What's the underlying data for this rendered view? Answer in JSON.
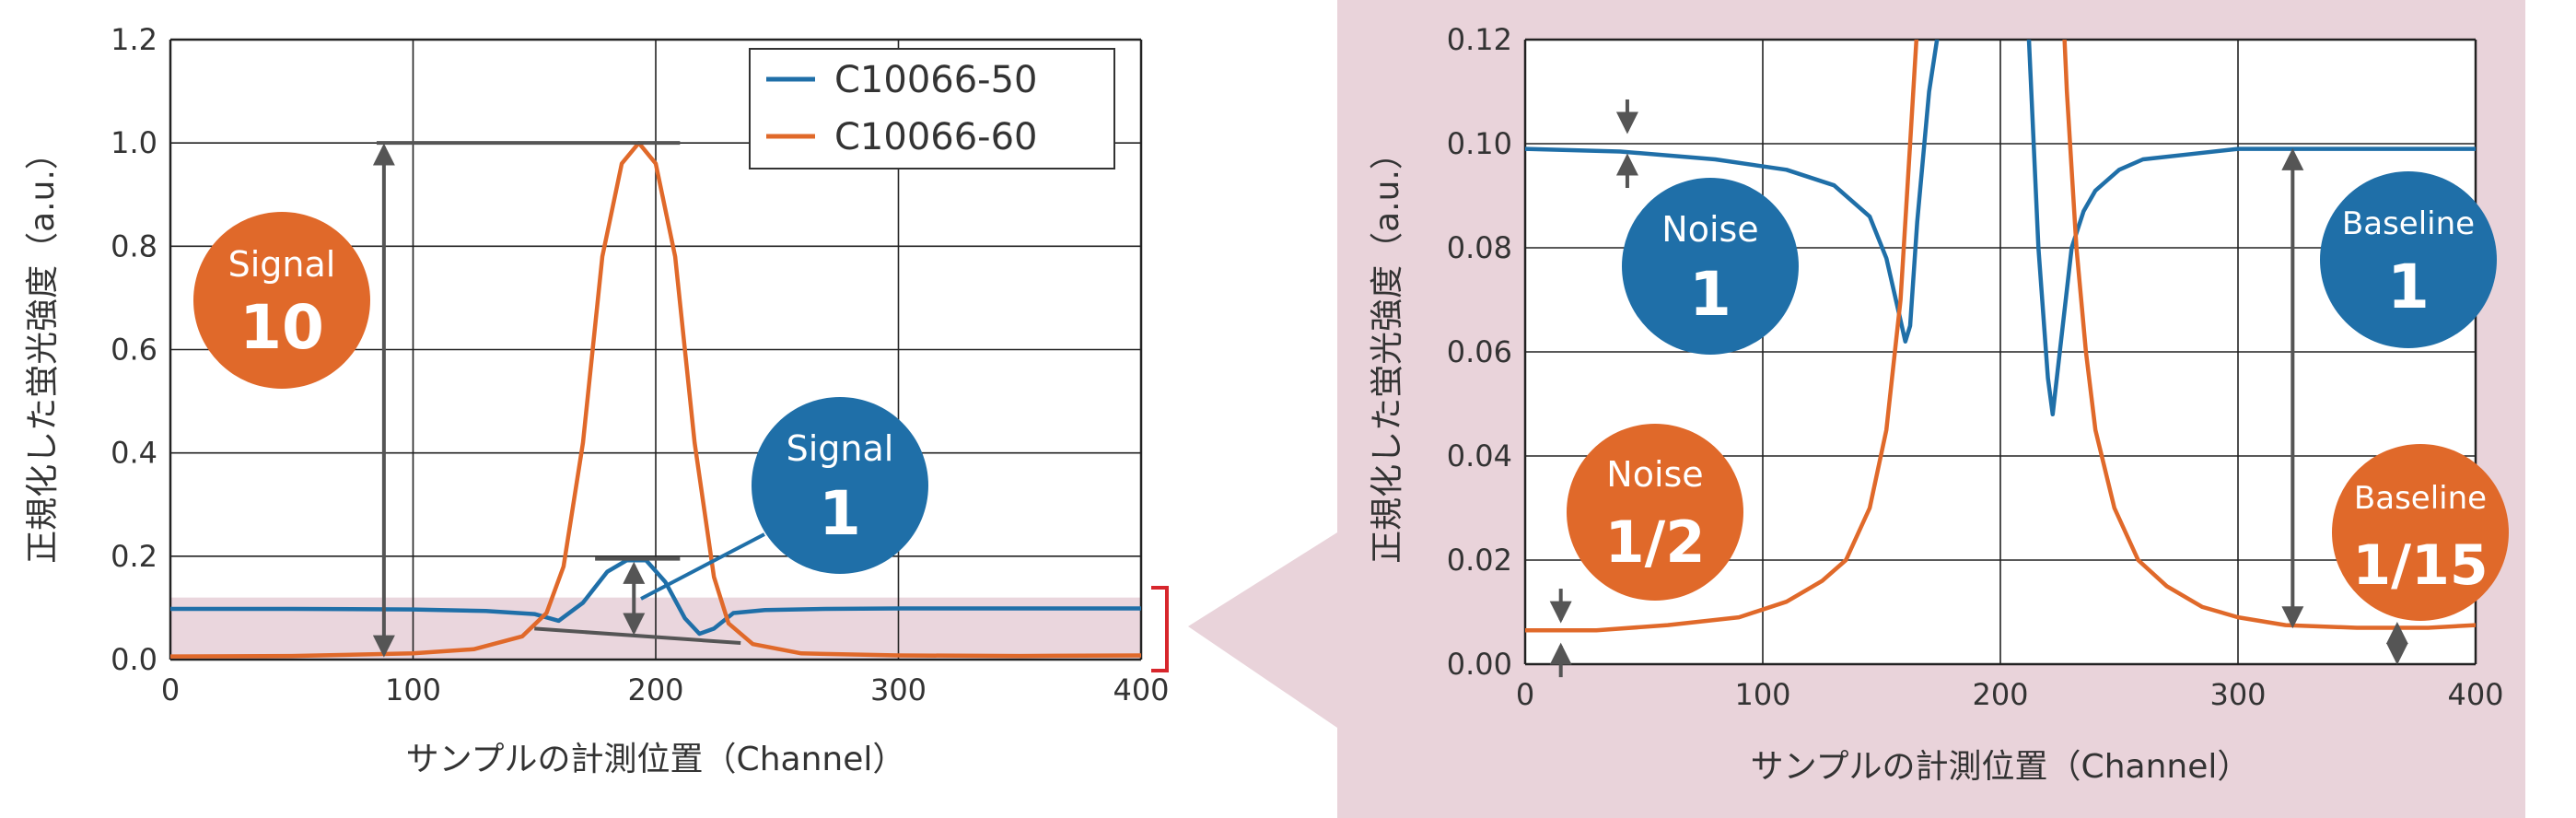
{
  "colors": {
    "blue": "#1f6fa8",
    "orange": "#e0692a",
    "pink_band": "#ead6dd",
    "pink_panel": "#e9d3da",
    "bracket": "#d7262c",
    "arrow": "#555555",
    "grid": "#222222"
  },
  "chart_data": [
    {
      "type": "line",
      "xlabel": "サンプルの計測位置（Channel）",
      "ylabel": "正規化した蛍光強度（a.u.）",
      "xlim": [
        0,
        400
      ],
      "ylim": [
        0,
        1.2
      ],
      "x_ticks": [
        0,
        100,
        200,
        300,
        400
      ],
      "y_ticks": [
        0.0,
        0.2,
        0.4,
        0.6,
        0.8,
        1.0,
        1.2
      ],
      "x_tick_labels": [
        "0",
        "100",
        "200",
        "300",
        "400"
      ],
      "y_tick_labels": [
        "0.0",
        "0.2",
        "0.4",
        "0.6",
        "0.8",
        "1.0",
        "1.2"
      ],
      "grid": true,
      "legend_position": "top-right",
      "highlight_band": [
        0,
        0.12
      ],
      "series": [
        {
          "name": "C10066-50",
          "color": "#1f6fa8",
          "x": [
            0,
            50,
            100,
            130,
            150,
            160,
            170,
            180,
            188,
            196,
            204,
            212,
            218,
            224,
            232,
            245,
            270,
            300,
            350,
            400
          ],
          "y": [
            0.098,
            0.098,
            0.097,
            0.094,
            0.088,
            0.075,
            0.11,
            0.17,
            0.192,
            0.192,
            0.15,
            0.08,
            0.05,
            0.06,
            0.09,
            0.096,
            0.098,
            0.099,
            0.099,
            0.099
          ]
        },
        {
          "name": "C10066-60",
          "color": "#e0692a",
          "x": [
            0,
            50,
            100,
            125,
            145,
            155,
            162,
            170,
            178,
            186,
            193,
            200,
            208,
            216,
            224,
            230,
            240,
            260,
            300,
            350,
            400
          ],
          "y": [
            0.006,
            0.007,
            0.012,
            0.02,
            0.045,
            0.09,
            0.18,
            0.42,
            0.78,
            0.96,
            1.0,
            0.96,
            0.78,
            0.42,
            0.16,
            0.07,
            0.03,
            0.012,
            0.008,
            0.007,
            0.008
          ]
        }
      ],
      "annotations": [
        {
          "label": "Signal",
          "value": "10",
          "color": "#e0692a"
        },
        {
          "label": "Signal",
          "value": "1",
          "color": "#1f6fa8"
        }
      ]
    },
    {
      "type": "line",
      "xlabel": "サンプルの計測位置（Channel）",
      "ylabel": "正規化した蛍光強度（a.u.）",
      "xlim": [
        0,
        400
      ],
      "ylim": [
        0,
        0.12
      ],
      "x_ticks": [
        0,
        100,
        200,
        300,
        400
      ],
      "y_ticks": [
        0.0,
        0.02,
        0.04,
        0.06,
        0.08,
        0.1,
        0.12
      ],
      "x_tick_labels": [
        "0",
        "100",
        "200",
        "300",
        "400"
      ],
      "y_tick_labels": [
        "0.00",
        "0.02",
        "0.04",
        "0.06",
        "0.08",
        "0.10",
        "0.12"
      ],
      "grid": true,
      "series": [
        {
          "name": "C10066-50",
          "color": "#1f6fa8",
          "x": [
            0,
            40,
            80,
            110,
            130,
            145,
            152,
            157,
            160,
            162,
            165,
            170,
            175,
            178,
            208,
            212,
            216,
            220,
            222,
            225,
            230,
            235,
            240,
            250,
            260,
            280,
            300,
            350,
            400
          ],
          "y": [
            0.099,
            0.0985,
            0.097,
            0.095,
            0.092,
            0.086,
            0.078,
            0.068,
            0.062,
            0.065,
            0.085,
            0.11,
            0.125,
            0.13,
            0.13,
            0.12,
            0.08,
            0.055,
            0.048,
            0.06,
            0.08,
            0.087,
            0.091,
            0.095,
            0.097,
            0.098,
            0.099,
            0.099,
            0.099
          ]
        },
        {
          "name": "C10066-60",
          "color": "#e0692a",
          "x": [
            0,
            30,
            60,
            90,
            110,
            125,
            135,
            145,
            152,
            158,
            162,
            164,
            166,
            226,
            228,
            232,
            236,
            240,
            248,
            258,
            270,
            285,
            300,
            320,
            350,
            380,
            400
          ],
          "y": [
            0.0065,
            0.0065,
            0.0075,
            0.009,
            0.012,
            0.016,
            0.02,
            0.03,
            0.045,
            0.07,
            0.1,
            0.115,
            0.13,
            0.13,
            0.11,
            0.08,
            0.06,
            0.045,
            0.03,
            0.02,
            0.015,
            0.011,
            0.009,
            0.0075,
            0.007,
            0.007,
            0.0075
          ]
        }
      ],
      "annotations": [
        {
          "label": "Noise",
          "value": "1",
          "color": "#1f6fa8"
        },
        {
          "label": "Baseline",
          "value": "1",
          "color": "#1f6fa8"
        },
        {
          "label": "Noise",
          "value": "1/2",
          "color": "#e0692a"
        },
        {
          "label": "Baseline",
          "value": "1/15",
          "color": "#e0692a"
        }
      ]
    }
  ]
}
